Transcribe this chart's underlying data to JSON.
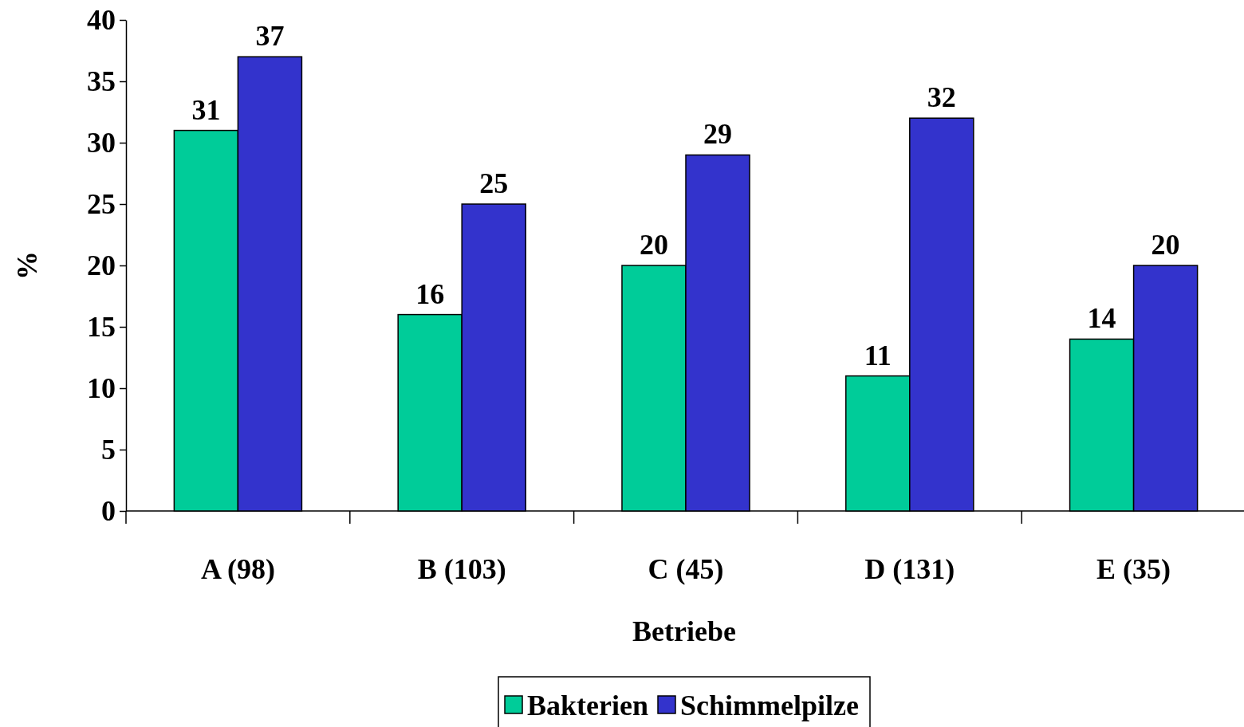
{
  "chart_data": {
    "type": "bar",
    "xlabel": "Betriebe",
    "ylabel": "%",
    "categories": [
      "A (98)",
      "B (103)",
      "C (45)",
      "D (131)",
      "E (35)"
    ],
    "series": [
      {
        "name": "Bakterien",
        "color": "#00cc99",
        "values": [
          31,
          16,
          20,
          11,
          14
        ]
      },
      {
        "name": "Schimmelpilze",
        "color": "#3333cc",
        "values": [
          37,
          25,
          29,
          32,
          20
        ]
      }
    ],
    "ylim": [
      0,
      40
    ],
    "yticks": [
      0,
      5,
      10,
      15,
      20,
      25,
      30,
      35,
      40
    ],
    "grid": false,
    "legend": "bottom",
    "data_labels": true
  }
}
